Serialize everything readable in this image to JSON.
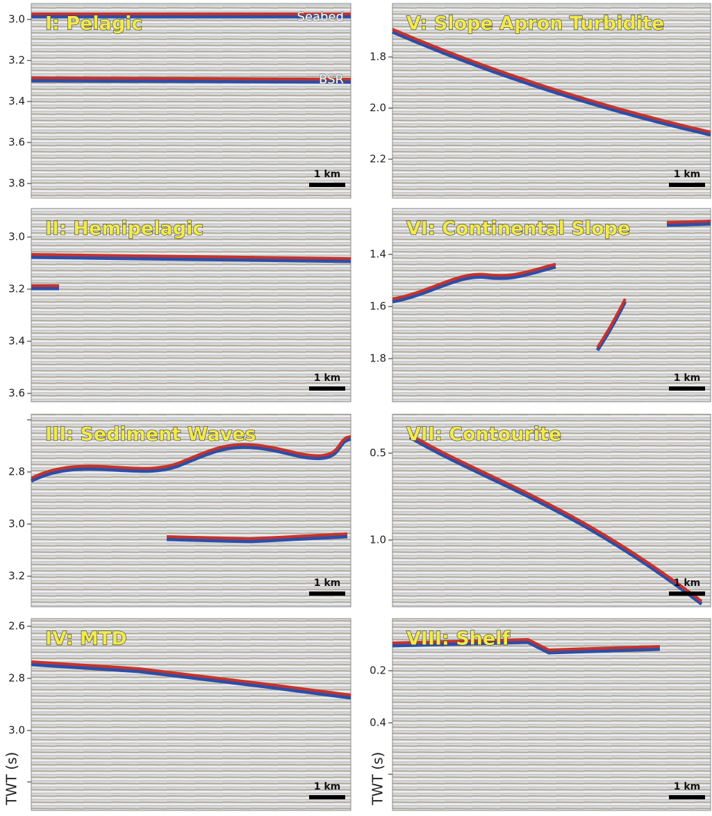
{
  "axis_label": "TWT (s)",
  "panels": [
    {
      "title": "I: Pelagic",
      "yticks": [
        "3.0",
        "3.2",
        "3.4",
        "3.6",
        "3.8"
      ],
      "scale_bar": "1 km",
      "annotations": [
        "Seabed",
        "BSR"
      ]
    },
    {
      "title": "II: Hemipelagic",
      "yticks": [
        "3.0",
        "3.2",
        "3.4",
        "3.6"
      ],
      "scale_bar": "1 km"
    },
    {
      "title": "III: Sediment Waves",
      "yticks": [
        "2.8",
        "3.0",
        "3.2"
      ],
      "scale_bar": "1 km"
    },
    {
      "title": "IV: MTD",
      "yticks": [
        "2.6",
        "2.8",
        "3.0"
      ],
      "scale_bar": "1 km"
    },
    {
      "title": "V: Slope Apron Turbidite",
      "yticks": [
        "1.8",
        "2.0",
        "2.2"
      ],
      "scale_bar": "1 km"
    },
    {
      "title": "VI: Continental Slope",
      "yticks": [
        "1.4",
        "1.6",
        "1.8"
      ],
      "scale_bar": "1 km"
    },
    {
      "title": "VII: Contourite",
      "yticks": [
        "0.5",
        "1.0"
      ],
      "scale_bar": "1 km"
    },
    {
      "title": "VIII: Shelf",
      "yticks": [
        "0.2",
        "0.4"
      ],
      "scale_bar": "1 km"
    }
  ]
}
